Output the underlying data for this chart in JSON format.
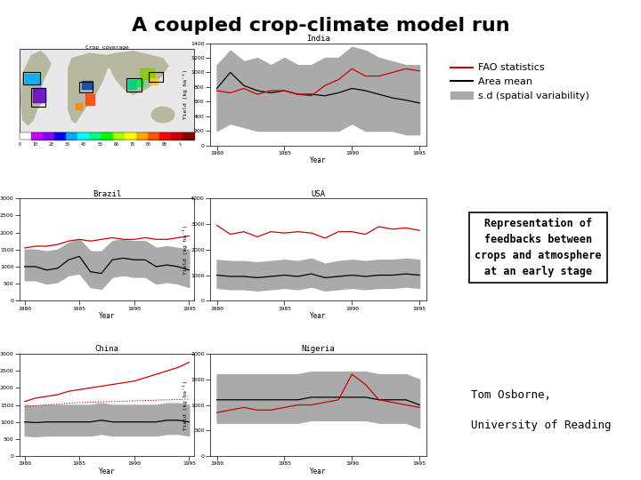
{
  "title": "A coupled crop-climate model run",
  "title_fontsize": 16,
  "background_color": "#ffffff",
  "fao_color": "#cc0000",
  "mean_color": "#000000",
  "shade_color": "#aaaaaa",
  "legend_labels": [
    "FAO statistics",
    "Area mean",
    "s.d (spatial variability)"
  ],
  "text_box": "Representation of\nfeedbacks between\ncrops and atmosphere\nat an early stage",
  "author_line1": "Tom Osborne,",
  "author_line2": "University of Reading",
  "plots": [
    {
      "title": "India",
      "years": [
        1980,
        1981,
        1982,
        1983,
        1984,
        1985,
        1986,
        1987,
        1988,
        1989,
        1990,
        1991,
        1992,
        1993,
        1994,
        1995
      ],
      "fao": [
        750,
        720,
        780,
        700,
        750,
        750,
        700,
        680,
        820,
        900,
        1050,
        950,
        950,
        1000,
        1050,
        1020
      ],
      "mean": [
        780,
        1000,
        820,
        750,
        720,
        750,
        700,
        700,
        680,
        720,
        780,
        750,
        700,
        650,
        620,
        580
      ],
      "upper": [
        1100,
        1300,
        1150,
        1200,
        1100,
        1200,
        1100,
        1100,
        1200,
        1200,
        1350,
        1300,
        1200,
        1150,
        1100,
        1100
      ],
      "lower": [
        200,
        300,
        250,
        200,
        200,
        200,
        200,
        200,
        200,
        200,
        300,
        200,
        200,
        200,
        150,
        150
      ],
      "ylabel": "Yield (kg ha⁻¹)",
      "ylim": [
        0,
        1400
      ],
      "yticks": [
        0,
        200,
        400,
        600,
        800,
        1000,
        1200,
        1400
      ],
      "xticks": [
        1980,
        1985,
        1990,
        1995
      ]
    },
    {
      "title": "Brazil",
      "years": [
        1980,
        1981,
        1982,
        1983,
        1984,
        1985,
        1986,
        1987,
        1988,
        1989,
        1990,
        1991,
        1992,
        1993,
        1994,
        1995
      ],
      "fao": [
        1550,
        1600,
        1600,
        1650,
        1750,
        1800,
        1750,
        1800,
        1850,
        1800,
        1800,
        1850,
        1800,
        1800,
        1850,
        1900
      ],
      "mean": [
        1000,
        1000,
        900,
        950,
        1200,
        1300,
        850,
        800,
        1200,
        1250,
        1200,
        1200,
        1000,
        1050,
        1000,
        900
      ],
      "upper": [
        1500,
        1500,
        1450,
        1500,
        1700,
        1800,
        1450,
        1450,
        1750,
        1800,
        1750,
        1750,
        1550,
        1600,
        1550,
        1500
      ],
      "lower": [
        600,
        600,
        500,
        550,
        750,
        800,
        400,
        350,
        700,
        750,
        700,
        700,
        500,
        550,
        500,
        400
      ],
      "ylabel": "Yield (kg ha⁻¹)",
      "ylim": [
        0,
        3000
      ],
      "yticks": [
        0,
        500,
        1000,
        1500,
        2000,
        2500,
        3000
      ],
      "xticks": [
        1980,
        1985,
        1990,
        1995
      ]
    },
    {
      "title": "USA",
      "years": [
        1980,
        1981,
        1982,
        1983,
        1984,
        1985,
        1986,
        1987,
        1988,
        1989,
        1990,
        1991,
        1992,
        1993,
        1994,
        1995
      ],
      "fao": [
        2950,
        2600,
        2700,
        2500,
        2700,
        2650,
        2700,
        2650,
        2450,
        2700,
        2700,
        2600,
        2900,
        2800,
        2850,
        2750
      ],
      "mean": [
        1000,
        950,
        950,
        900,
        950,
        1000,
        950,
        1050,
        900,
        950,
        1000,
        950,
        1000,
        1000,
        1050,
        1000
      ],
      "upper": [
        1600,
        1550,
        1550,
        1500,
        1550,
        1600,
        1550,
        1650,
        1450,
        1550,
        1600,
        1550,
        1600,
        1600,
        1650,
        1600
      ],
      "lower": [
        500,
        450,
        450,
        400,
        450,
        500,
        450,
        550,
        400,
        450,
        500,
        450,
        500,
        500,
        550,
        500
      ],
      "ylabel": "Yield (kg ha⁻¹)",
      "ylim": [
        0,
        4000
      ],
      "yticks": [
        0,
        1000,
        2000,
        3000,
        4000
      ],
      "xticks": [
        1980,
        1985,
        1990,
        1995
      ]
    },
    {
      "title": "China",
      "years": [
        1980,
        1981,
        1982,
        1983,
        1984,
        1985,
        1986,
        1987,
        1988,
        1989,
        1990,
        1991,
        1992,
        1993,
        1994,
        1995
      ],
      "fao": [
        1600,
        1700,
        1750,
        1800,
        1900,
        1950,
        2000,
        2050,
        2100,
        2150,
        2200,
        2300,
        2400,
        2500,
        2600,
        2750
      ],
      "fao_dotted": [
        1450,
        1480,
        1500,
        1520,
        1550,
        1570,
        1580,
        1590,
        1600,
        1610,
        1620,
        1630,
        1640,
        1650,
        1660,
        1670
      ],
      "mean": [
        1000,
        980,
        1000,
        1000,
        1000,
        1000,
        1000,
        1050,
        1000,
        1000,
        1000,
        1000,
        1000,
        1050,
        1050,
        1000
      ],
      "upper": [
        1500,
        1480,
        1500,
        1500,
        1500,
        1500,
        1500,
        1550,
        1500,
        1500,
        1500,
        1500,
        1500,
        1550,
        1550,
        1500
      ],
      "lower": [
        600,
        580,
        600,
        600,
        600,
        600,
        600,
        650,
        600,
        600,
        600,
        600,
        600,
        650,
        650,
        600
      ],
      "ylabel": "Yield (kg ha⁻¹)",
      "ylim": [
        0,
        3000
      ],
      "yticks": [
        0,
        500,
        1000,
        1500,
        2000,
        2500,
        3000
      ],
      "xticks": [
        1980,
        1985,
        1990,
        1995
      ],
      "has_dotted": true
    },
    {
      "title": "Nigeria",
      "years": [
        1980,
        1981,
        1982,
        1983,
        1984,
        1985,
        1986,
        1987,
        1988,
        1989,
        1990,
        1991,
        1992,
        1993,
        1994,
        1995
      ],
      "fao": [
        850,
        900,
        950,
        900,
        900,
        950,
        1000,
        1000,
        1050,
        1100,
        1600,
        1400,
        1100,
        1050,
        1000,
        950
      ],
      "mean": [
        1100,
        1100,
        1100,
        1100,
        1100,
        1100,
        1100,
        1150,
        1150,
        1150,
        1150,
        1150,
        1100,
        1100,
        1100,
        1000
      ],
      "upper": [
        1600,
        1600,
        1600,
        1600,
        1600,
        1600,
        1600,
        1650,
        1650,
        1650,
        1650,
        1650,
        1600,
        1600,
        1600,
        1500
      ],
      "lower": [
        650,
        650,
        650,
        650,
        650,
        650,
        650,
        700,
        700,
        700,
        700,
        700,
        650,
        650,
        650,
        550
      ],
      "ylabel": "Yield (kg ha⁻¹)",
      "ylim": [
        0,
        2000
      ],
      "yticks": [
        0,
        500,
        1000,
        1500,
        2000
      ],
      "xticks": [
        1980,
        1985,
        1990,
        1995
      ]
    }
  ]
}
